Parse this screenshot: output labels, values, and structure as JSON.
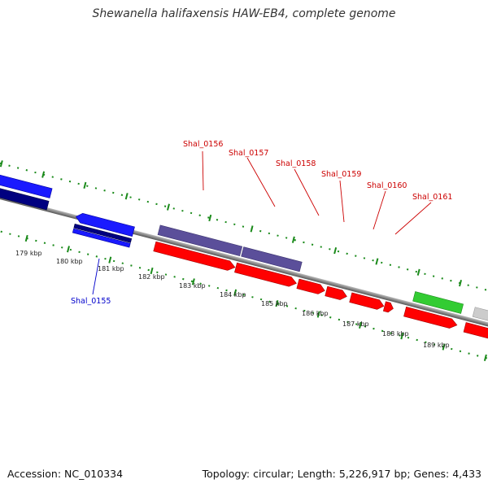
{
  "title": "Shewanella halifaxensis HAW-EB4, complete genome",
  "footer": {
    "accession": "Accession: NC_010334",
    "summary": "Topology: circular; Length: 5,226,917 bp; Genes: 4,433"
  },
  "ticks": [
    "179 kbp",
    "180 kbp",
    "181 kbp",
    "182 kbp",
    "183 kbp",
    "184 kbp",
    "185 kbp",
    "186 kbp",
    "187 kbp",
    "188 kbp",
    "189 kbp"
  ],
  "gene_labels": [
    {
      "text": "Shal_0155",
      "color": "#0000cc"
    },
    {
      "text": "Shal_0156",
      "color": "#cc0000"
    },
    {
      "text": "Shal_0157",
      "color": "#cc0000"
    },
    {
      "text": "Shal_0158",
      "color": "#cc0000"
    },
    {
      "text": "Shal_0159",
      "color": "#cc0000"
    },
    {
      "text": "Shal_0160",
      "color": "#cc0000"
    },
    {
      "text": "Shal_0161",
      "color": "#cc0000"
    }
  ],
  "colors": {
    "forward_cds": "#ff0000",
    "reverse_cds": "#1a1aff",
    "dark_blue_cds": "#000080",
    "purple_feature": "#5b4f9a",
    "green_feature": "#33cc33",
    "gray_feature": "#cccccc",
    "backbone": "#888888",
    "tick_dots": "#1a8a1a"
  }
}
